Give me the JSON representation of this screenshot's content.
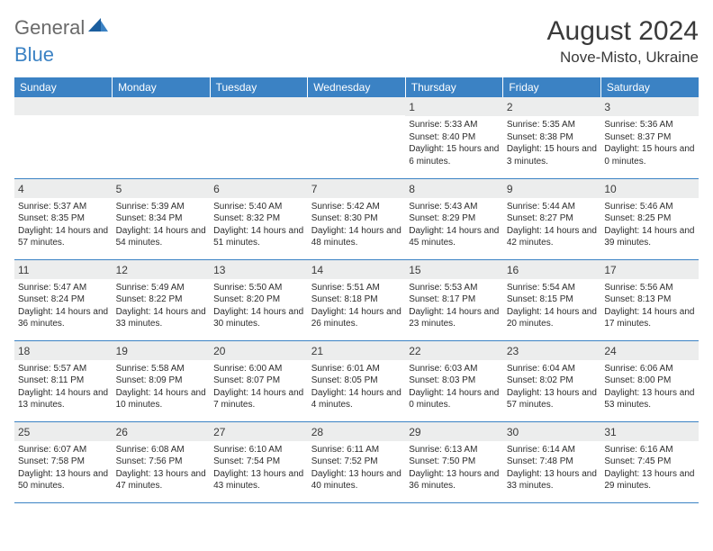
{
  "logo": {
    "text1": "General",
    "text2": "Blue"
  },
  "title": "August 2024",
  "location": "Nove-Misto, Ukraine",
  "colors": {
    "header_bg": "#3b82c4",
    "header_text": "#ffffff",
    "daynum_bg": "#eceded",
    "text": "#2c2c2c",
    "border": "#3b82c4",
    "logo_gray": "#6a6a6a",
    "logo_blue": "#3b82c4"
  },
  "weekdays": [
    "Sunday",
    "Monday",
    "Tuesday",
    "Wednesday",
    "Thursday",
    "Friday",
    "Saturday"
  ],
  "weeks": [
    [
      null,
      null,
      null,
      null,
      {
        "n": "1",
        "sr": "5:33 AM",
        "ss": "8:40 PM",
        "dl": "15 hours and 6 minutes."
      },
      {
        "n": "2",
        "sr": "5:35 AM",
        "ss": "8:38 PM",
        "dl": "15 hours and 3 minutes."
      },
      {
        "n": "3",
        "sr": "5:36 AM",
        "ss": "8:37 PM",
        "dl": "15 hours and 0 minutes."
      }
    ],
    [
      {
        "n": "4",
        "sr": "5:37 AM",
        "ss": "8:35 PM",
        "dl": "14 hours and 57 minutes."
      },
      {
        "n": "5",
        "sr": "5:39 AM",
        "ss": "8:34 PM",
        "dl": "14 hours and 54 minutes."
      },
      {
        "n": "6",
        "sr": "5:40 AM",
        "ss": "8:32 PM",
        "dl": "14 hours and 51 minutes."
      },
      {
        "n": "7",
        "sr": "5:42 AM",
        "ss": "8:30 PM",
        "dl": "14 hours and 48 minutes."
      },
      {
        "n": "8",
        "sr": "5:43 AM",
        "ss": "8:29 PM",
        "dl": "14 hours and 45 minutes."
      },
      {
        "n": "9",
        "sr": "5:44 AM",
        "ss": "8:27 PM",
        "dl": "14 hours and 42 minutes."
      },
      {
        "n": "10",
        "sr": "5:46 AM",
        "ss": "8:25 PM",
        "dl": "14 hours and 39 minutes."
      }
    ],
    [
      {
        "n": "11",
        "sr": "5:47 AM",
        "ss": "8:24 PM",
        "dl": "14 hours and 36 minutes."
      },
      {
        "n": "12",
        "sr": "5:49 AM",
        "ss": "8:22 PM",
        "dl": "14 hours and 33 minutes."
      },
      {
        "n": "13",
        "sr": "5:50 AM",
        "ss": "8:20 PM",
        "dl": "14 hours and 30 minutes."
      },
      {
        "n": "14",
        "sr": "5:51 AM",
        "ss": "8:18 PM",
        "dl": "14 hours and 26 minutes."
      },
      {
        "n": "15",
        "sr": "5:53 AM",
        "ss": "8:17 PM",
        "dl": "14 hours and 23 minutes."
      },
      {
        "n": "16",
        "sr": "5:54 AM",
        "ss": "8:15 PM",
        "dl": "14 hours and 20 minutes."
      },
      {
        "n": "17",
        "sr": "5:56 AM",
        "ss": "8:13 PM",
        "dl": "14 hours and 17 minutes."
      }
    ],
    [
      {
        "n": "18",
        "sr": "5:57 AM",
        "ss": "8:11 PM",
        "dl": "14 hours and 13 minutes."
      },
      {
        "n": "19",
        "sr": "5:58 AM",
        "ss": "8:09 PM",
        "dl": "14 hours and 10 minutes."
      },
      {
        "n": "20",
        "sr": "6:00 AM",
        "ss": "8:07 PM",
        "dl": "14 hours and 7 minutes."
      },
      {
        "n": "21",
        "sr": "6:01 AM",
        "ss": "8:05 PM",
        "dl": "14 hours and 4 minutes."
      },
      {
        "n": "22",
        "sr": "6:03 AM",
        "ss": "8:03 PM",
        "dl": "14 hours and 0 minutes."
      },
      {
        "n": "23",
        "sr": "6:04 AM",
        "ss": "8:02 PM",
        "dl": "13 hours and 57 minutes."
      },
      {
        "n": "24",
        "sr": "6:06 AM",
        "ss": "8:00 PM",
        "dl": "13 hours and 53 minutes."
      }
    ],
    [
      {
        "n": "25",
        "sr": "6:07 AM",
        "ss": "7:58 PM",
        "dl": "13 hours and 50 minutes."
      },
      {
        "n": "26",
        "sr": "6:08 AM",
        "ss": "7:56 PM",
        "dl": "13 hours and 47 minutes."
      },
      {
        "n": "27",
        "sr": "6:10 AM",
        "ss": "7:54 PM",
        "dl": "13 hours and 43 minutes."
      },
      {
        "n": "28",
        "sr": "6:11 AM",
        "ss": "7:52 PM",
        "dl": "13 hours and 40 minutes."
      },
      {
        "n": "29",
        "sr": "6:13 AM",
        "ss": "7:50 PM",
        "dl": "13 hours and 36 minutes."
      },
      {
        "n": "30",
        "sr": "6:14 AM",
        "ss": "7:48 PM",
        "dl": "13 hours and 33 minutes."
      },
      {
        "n": "31",
        "sr": "6:16 AM",
        "ss": "7:45 PM",
        "dl": "13 hours and 29 minutes."
      }
    ]
  ],
  "labels": {
    "sunrise": "Sunrise: ",
    "sunset": "Sunset: ",
    "daylight": "Daylight: "
  }
}
